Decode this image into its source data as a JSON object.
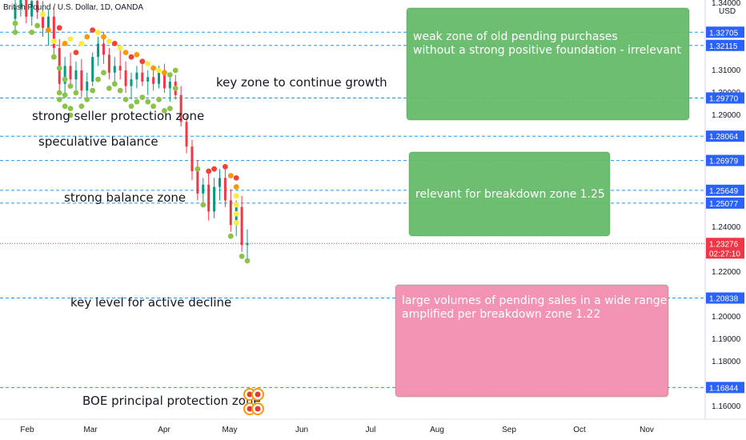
{
  "chart_data": {
    "type": "candlestick",
    "title": "British Pound / U.S. Dollar, 1D, OANDA",
    "currency": "USD",
    "ylim": [
      1.155,
      1.345
    ],
    "y_ticks": [
      1.34,
      1.31,
      1.3,
      1.29,
      1.24,
      1.22,
      1.2,
      1.19,
      1.18,
      1.16
    ],
    "x_ticks": [
      "Feb",
      "Mar",
      "Apr",
      "May",
      "Jun",
      "Jul",
      "Aug",
      "Sep",
      "Oct",
      "Nov"
    ],
    "levels": [
      {
        "value": 1.32705,
        "label": "1.32705"
      },
      {
        "value": 1.32115,
        "label": "1.32115"
      },
      {
        "value": 1.2977,
        "label": "1.29770"
      },
      {
        "value": 1.28064,
        "label": "1.28064"
      },
      {
        "value": 1.26979,
        "label": "1.26979"
      },
      {
        "value": 1.25649,
        "label": "1.25649"
      },
      {
        "value": 1.25077,
        "label": "1.25077"
      },
      {
        "value": 1.20838,
        "label": "1.20838"
      },
      {
        "value": 1.16844,
        "label": "1.16844"
      }
    ],
    "current_price": {
      "value": 1.23276,
      "label": "1.23276",
      "countdown": "02:27:10"
    },
    "annotations": [
      "key zone to continue growth",
      "strong seller protection zone",
      "speculative balance",
      "strong balance zone",
      "key level for active decline",
      "BOE principal protection zone"
    ],
    "zones": [
      {
        "text": [
          "weak  zone of old pending purchases",
          "without a strong positive foundation - irrelevant"
        ],
        "color": "#66bb6a"
      },
      {
        "text": [
          "relevant for breakdown zone 1.25"
        ],
        "color": "#66bb6a"
      },
      {
        "text": [
          "large volumes of pending sales in a wide range",
          "amplified per breakdown zone 1.22"
        ],
        "color": "#f48fb1"
      }
    ],
    "candles": [
      {
        "o": 1.333,
        "h": 1.342,
        "l": 1.326,
        "c": 1.338
      },
      {
        "o": 1.338,
        "h": 1.345,
        "l": 1.334,
        "c": 1.342
      },
      {
        "o": 1.342,
        "h": 1.345,
        "l": 1.331,
        "c": 1.334
      },
      {
        "o": 1.334,
        "h": 1.344,
        "l": 1.33,
        "c": 1.341
      },
      {
        "o": 1.341,
        "h": 1.345,
        "l": 1.333,
        "c": 1.336
      },
      {
        "o": 1.336,
        "h": 1.341,
        "l": 1.325,
        "c": 1.329
      },
      {
        "o": 1.329,
        "h": 1.337,
        "l": 1.321,
        "c": 1.334
      },
      {
        "o": 1.334,
        "h": 1.338,
        "l": 1.316,
        "c": 1.32
      },
      {
        "o": 1.32,
        "h": 1.324,
        "l": 1.301,
        "c": 1.304
      },
      {
        "o": 1.304,
        "h": 1.316,
        "l": 1.299,
        "c": 1.312
      },
      {
        "o": 1.312,
        "h": 1.318,
        "l": 1.302,
        "c": 1.306
      },
      {
        "o": 1.306,
        "h": 1.314,
        "l": 1.3,
        "c": 1.31
      },
      {
        "o": 1.31,
        "h": 1.315,
        "l": 1.298,
        "c": 1.301
      },
      {
        "o": 1.301,
        "h": 1.309,
        "l": 1.297,
        "c": 1.305
      },
      {
        "o": 1.305,
        "h": 1.318,
        "l": 1.303,
        "c": 1.316
      },
      {
        "o": 1.316,
        "h": 1.325,
        "l": 1.312,
        "c": 1.322
      },
      {
        "o": 1.322,
        "h": 1.327,
        "l": 1.313,
        "c": 1.317
      },
      {
        "o": 1.317,
        "h": 1.32,
        "l": 1.306,
        "c": 1.309
      },
      {
        "o": 1.309,
        "h": 1.316,
        "l": 1.304,
        "c": 1.312
      },
      {
        "o": 1.312,
        "h": 1.319,
        "l": 1.306,
        "c": 1.31
      },
      {
        "o": 1.31,
        "h": 1.314,
        "l": 1.3,
        "c": 1.303
      },
      {
        "o": 1.303,
        "h": 1.309,
        "l": 1.297,
        "c": 1.306
      },
      {
        "o": 1.306,
        "h": 1.312,
        "l": 1.302,
        "c": 1.309
      },
      {
        "o": 1.309,
        "h": 1.314,
        "l": 1.303,
        "c": 1.305
      },
      {
        "o": 1.305,
        "h": 1.31,
        "l": 1.299,
        "c": 1.307
      },
      {
        "o": 1.307,
        "h": 1.311,
        "l": 1.301,
        "c": 1.304
      },
      {
        "o": 1.304,
        "h": 1.312,
        "l": 1.302,
        "c": 1.309
      },
      {
        "o": 1.309,
        "h": 1.313,
        "l": 1.3,
        "c": 1.302
      },
      {
        "o": 1.302,
        "h": 1.308,
        "l": 1.296,
        "c": 1.305
      },
      {
        "o": 1.305,
        "h": 1.308,
        "l": 1.297,
        "c": 1.299
      },
      {
        "o": 1.299,
        "h": 1.303,
        "l": 1.285,
        "c": 1.287
      },
      {
        "o": 1.287,
        "h": 1.29,
        "l": 1.273,
        "c": 1.276
      },
      {
        "o": 1.276,
        "h": 1.279,
        "l": 1.261,
        "c": 1.265
      },
      {
        "o": 1.265,
        "h": 1.27,
        "l": 1.252,
        "c": 1.255
      },
      {
        "o": 1.255,
        "h": 1.262,
        "l": 1.249,
        "c": 1.259
      },
      {
        "o": 1.259,
        "h": 1.264,
        "l": 1.243,
        "c": 1.247
      },
      {
        "o": 1.247,
        "h": 1.262,
        "l": 1.244,
        "c": 1.258
      },
      {
        "o": 1.258,
        "h": 1.266,
        "l": 1.252,
        "c": 1.262
      },
      {
        "o": 1.262,
        "h": 1.267,
        "l": 1.249,
        "c": 1.252
      },
      {
        "o": 1.252,
        "h": 1.257,
        "l": 1.238,
        "c": 1.241
      },
      {
        "o": 1.241,
        "h": 1.252,
        "l": 1.236,
        "c": 1.249
      },
      {
        "o": 1.249,
        "h": 1.254,
        "l": 1.229,
        "c": 1.232
      },
      {
        "o": 1.232,
        "h": 1.239,
        "l": 1.226,
        "c": 1.233
      }
    ],
    "dots": [
      {
        "i": 0,
        "v": 1.327,
        "c": "green"
      },
      {
        "i": 0,
        "v": 1.331,
        "c": "green"
      },
      {
        "i": 3,
        "v": 1.327,
        "c": "green"
      },
      {
        "i": 4,
        "v": 1.33,
        "c": "green"
      },
      {
        "i": 5,
        "v": 1.335,
        "c": "yellow"
      },
      {
        "i": 6,
        "v": 1.328,
        "c": "orange"
      },
      {
        "i": 7,
        "v": 1.323,
        "c": "yellow"
      },
      {
        "i": 7,
        "v": 1.316,
        "c": "green"
      },
      {
        "i": 8,
        "v": 1.329,
        "c": "red"
      },
      {
        "i": 8,
        "v": 1.311,
        "c": "green"
      },
      {
        "i": 8,
        "v": 1.3,
        "c": "green"
      },
      {
        "i": 8,
        "v": 1.297,
        "c": "green"
      },
      {
        "i": 9,
        "v": 1.322,
        "c": "orange"
      },
      {
        "i": 9,
        "v": 1.306,
        "c": "green"
      },
      {
        "i": 9,
        "v": 1.299,
        "c": "green"
      },
      {
        "i": 9,
        "v": 1.294,
        "c": "green"
      },
      {
        "i": 10,
        "v": 1.324,
        "c": "yellow"
      },
      {
        "i": 10,
        "v": 1.303,
        "c": "green"
      },
      {
        "i": 10,
        "v": 1.293,
        "c": "green"
      },
      {
        "i": 10,
        "v": 1.29,
        "c": "green"
      },
      {
        "i": 11,
        "v": 1.318,
        "c": "red"
      },
      {
        "i": 11,
        "v": 1.3,
        "c": "green"
      },
      {
        "i": 12,
        "v": 1.322,
        "c": "yellow"
      },
      {
        "i": 12,
        "v": 1.294,
        "c": "green"
      },
      {
        "i": 13,
        "v": 1.325,
        "c": "orange"
      },
      {
        "i": 13,
        "v": 1.297,
        "c": "green"
      },
      {
        "i": 14,
        "v": 1.328,
        "c": "red"
      },
      {
        "i": 14,
        "v": 1.301,
        "c": "green"
      },
      {
        "i": 15,
        "v": 1.327,
        "c": "yellow"
      },
      {
        "i": 15,
        "v": 1.306,
        "c": "green"
      },
      {
        "i": 16,
        "v": 1.325,
        "c": "orange"
      },
      {
        "i": 16,
        "v": 1.309,
        "c": "green"
      },
      {
        "i": 17,
        "v": 1.323,
        "c": "yellow"
      },
      {
        "i": 17,
        "v": 1.302,
        "c": "green"
      },
      {
        "i": 18,
        "v": 1.322,
        "c": "red"
      },
      {
        "i": 18,
        "v": 1.304,
        "c": "green"
      },
      {
        "i": 19,
        "v": 1.32,
        "c": "yellow"
      },
      {
        "i": 19,
        "v": 1.301,
        "c": "green"
      },
      {
        "i": 20,
        "v": 1.318,
        "c": "orange"
      },
      {
        "i": 20,
        "v": 1.297,
        "c": "green"
      },
      {
        "i": 21,
        "v": 1.316,
        "c": "red"
      },
      {
        "i": 21,
        "v": 1.294,
        "c": "green"
      },
      {
        "i": 22,
        "v": 1.317,
        "c": "orange"
      },
      {
        "i": 22,
        "v": 1.296,
        "c": "green"
      },
      {
        "i": 23,
        "v": 1.314,
        "c": "red"
      },
      {
        "i": 23,
        "v": 1.298,
        "c": "green"
      },
      {
        "i": 24,
        "v": 1.313,
        "c": "yellow"
      },
      {
        "i": 24,
        "v": 1.296,
        "c": "green"
      },
      {
        "i": 25,
        "v": 1.311,
        "c": "orange"
      },
      {
        "i": 25,
        "v": 1.294,
        "c": "green"
      },
      {
        "i": 26,
        "v": 1.31,
        "c": "yellow"
      },
      {
        "i": 26,
        "v": 1.297,
        "c": "green"
      },
      {
        "i": 27,
        "v": 1.309,
        "c": "orange"
      },
      {
        "i": 27,
        "v": 1.292,
        "c": "green"
      },
      {
        "i": 28,
        "v": 1.308,
        "c": "green"
      },
      {
        "i": 28,
        "v": 1.293,
        "c": "green"
      },
      {
        "i": 29,
        "v": 1.31,
        "c": "green"
      },
      {
        "i": 29,
        "v": 1.302,
        "c": "green"
      },
      {
        "i": 33,
        "v": 1.266,
        "c": "green"
      },
      {
        "i": 34,
        "v": 1.25,
        "c": "green"
      },
      {
        "i": 35,
        "v": 1.265,
        "c": "red"
      },
      {
        "i": 36,
        "v": 1.266,
        "c": "red"
      },
      {
        "i": 38,
        "v": 1.267,
        "c": "red"
      },
      {
        "i": 39,
        "v": 1.263,
        "c": "orange"
      },
      {
        "i": 39,
        "v": 1.236,
        "c": "green"
      },
      {
        "i": 40,
        "v": 1.262,
        "c": "red"
      },
      {
        "i": 40,
        "v": 1.258,
        "c": "orange"
      },
      {
        "i": 40,
        "v": 1.254,
        "c": "yellow"
      },
      {
        "i": 40,
        "v": 1.25,
        "c": "yellow"
      },
      {
        "i": 40,
        "v": 1.246,
        "c": "yellow"
      },
      {
        "i": 40,
        "v": 1.242,
        "c": "yellow"
      },
      {
        "i": 41,
        "v": 1.227,
        "c": "green"
      },
      {
        "i": 42,
        "v": 1.225,
        "c": "green"
      }
    ]
  }
}
